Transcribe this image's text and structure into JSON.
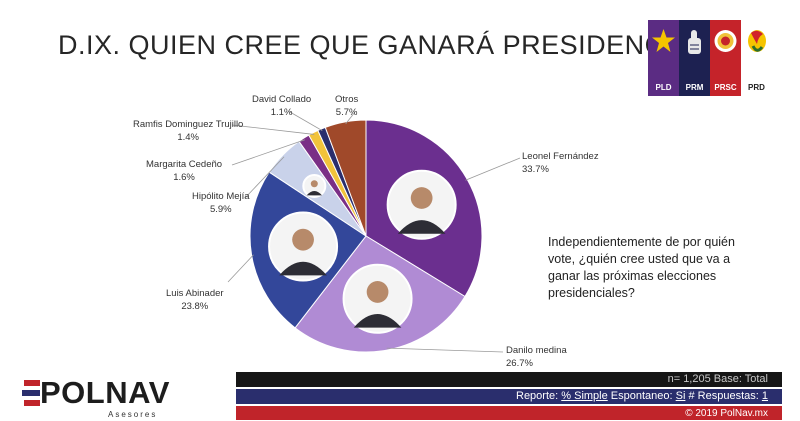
{
  "title": "D.IX. QUIEN CREE QUE GANARÁ PRESIDENCIA",
  "parties": [
    {
      "label": "PLD",
      "color": "#5b2c83",
      "icon": "star-icon"
    },
    {
      "label": "PRM",
      "color": "#1d2151",
      "icon": "thumbs-up-icon"
    },
    {
      "label": "PRSC",
      "color": "#c5232a",
      "icon": "seal-icon"
    },
    {
      "label": "PRD",
      "color": "#ffffff",
      "icon": "rooster-icon"
    }
  ],
  "question": "Independientemente de por quién vote, ¿quién cree usted que va a ganar las próximas elecciones presidenciales?",
  "chart_data": {
    "type": "pie",
    "title": "D.IX. QUIEN CREE QUE GANARÁ PRESIDENCIA",
    "slices": [
      {
        "label": "Leonel Fernández",
        "value": 33.7,
        "display": "33.7%",
        "color": "#6b2f8f"
      },
      {
        "label": "Danilo medina",
        "value": 26.7,
        "display": "26.7%",
        "color": "#b08bd4"
      },
      {
        "label": "Luis Abinader",
        "value": 23.8,
        "display": "23.8%",
        "color": "#33479a"
      },
      {
        "label": "Hipólito Mejía",
        "value": 5.9,
        "display": "5.9%",
        "color": "#c9d2ea"
      },
      {
        "label": "Margarita Cedeño",
        "value": 1.6,
        "display": "1.6%",
        "color": "#7a2f86"
      },
      {
        "label": "Ramfis Dominguez Trujillo",
        "value": 1.4,
        "display": "1.4%",
        "color": "#f2c33b"
      },
      {
        "label": "David Collado",
        "value": 1.1,
        "display": "1.1%",
        "color": "#2a2e6d"
      },
      {
        "label": "Otros",
        "value": 5.7,
        "display": "5.7%",
        "color": "#a0492a"
      }
    ]
  },
  "logo": {
    "name": "POLNAV",
    "sub": "Asesores"
  },
  "footer": {
    "n_text": "n= 1,205  Base: Total",
    "reporte_label": "Reporte:",
    "reporte_value": "% Simple",
    "espontaneo_label": "Espontaneo:",
    "espontaneo_value": "Si",
    "respuestas_label": "# Respuestas:",
    "respuestas_value": "1",
    "copyright": "© 2019 PolNav.mx"
  }
}
